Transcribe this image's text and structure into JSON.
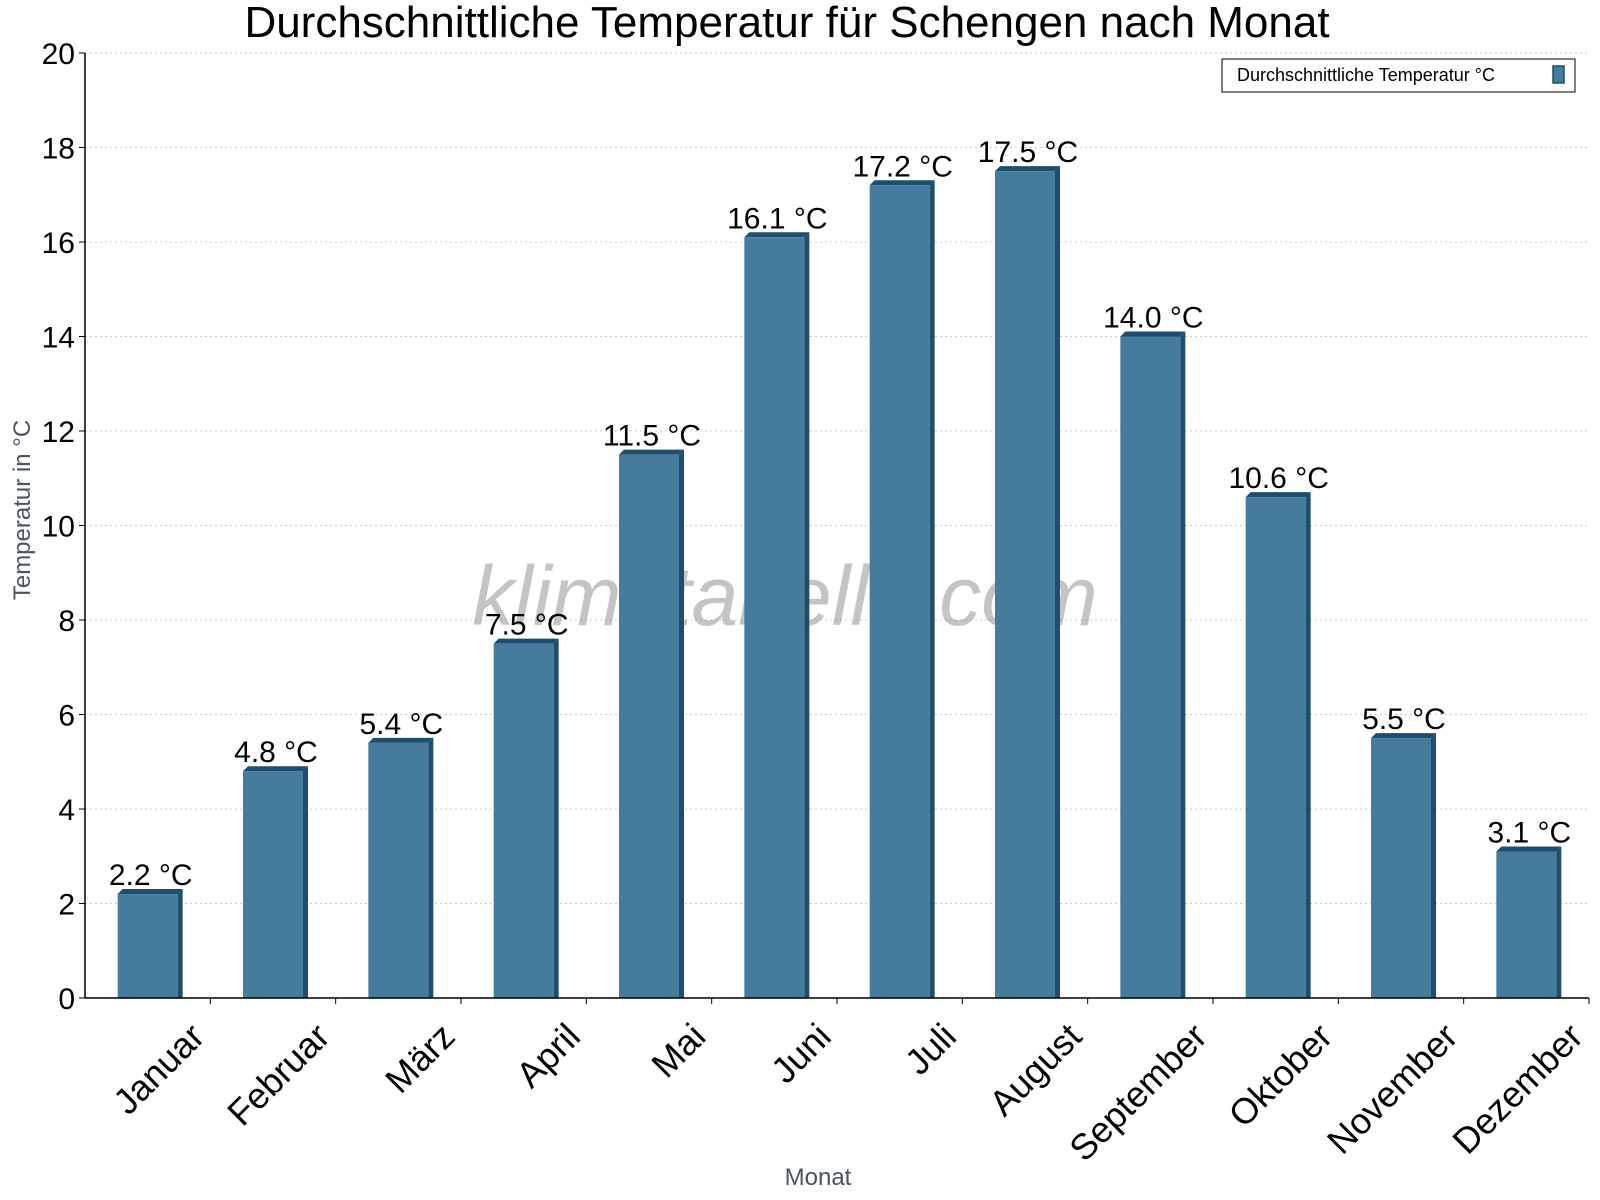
{
  "chart_data": {
    "type": "bar",
    "title": "Durchschnittliche Temperatur für Schengen nach Monat",
    "xlabel": "Monat",
    "ylabel": "Temperatur in °C",
    "categories": [
      "Januar",
      "Februar",
      "März",
      "April",
      "Mai",
      "Juni",
      "Juli",
      "August",
      "September",
      "Oktober",
      "November",
      "Dezember"
    ],
    "series": [
      {
        "name": "Durchschnittliche Temperatur °C",
        "values": [
          2.2,
          4.8,
          5.4,
          7.5,
          11.5,
          16.1,
          17.2,
          17.5,
          14.0,
          10.6,
          5.5,
          3.1
        ],
        "labels": [
          "2.2 °C",
          "4.8 °C",
          "5.4 °C",
          "7.5 °C",
          "11.5 °C",
          "16.1 °C",
          "17.2 °C",
          "17.5 °C",
          "14.0 °C",
          "10.6 °C",
          "5.5 °C",
          "3.1 °C"
        ]
      }
    ],
    "ylim": [
      0,
      20
    ],
    "yticks": [
      "0",
      "2",
      "4",
      "6",
      "8",
      "10",
      "12",
      "14",
      "16",
      "18",
      "20"
    ],
    "grid": true,
    "legend_position": "top-right",
    "colors": {
      "bar": "#457b9d",
      "bar_dark": "#1d4e6e",
      "grid": "#c8c8c8",
      "axis": "#000000"
    }
  },
  "watermark": "klimatabelle.com"
}
